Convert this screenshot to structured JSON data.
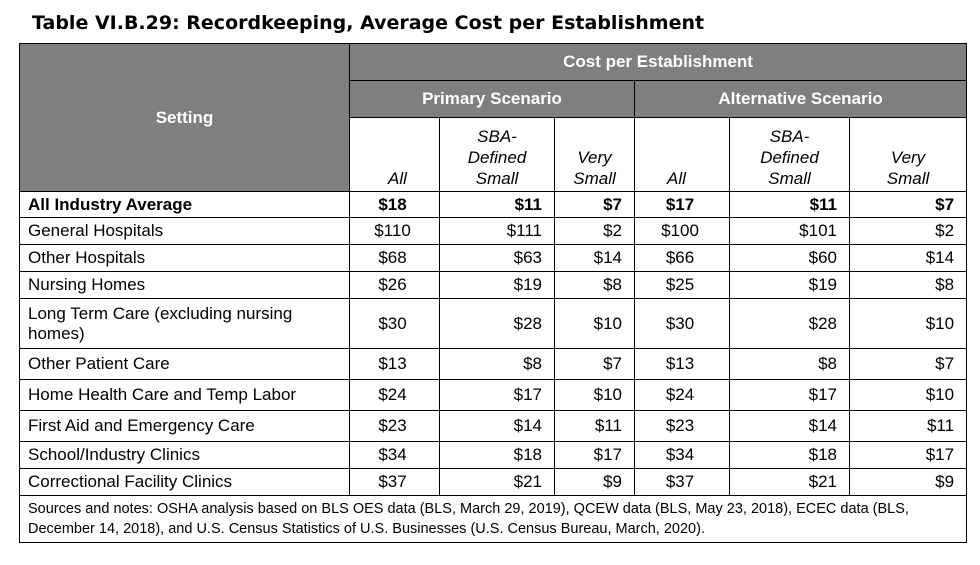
{
  "title": "Table VI.B.29: Recordkeeping, Average Cost per Establishment",
  "header": {
    "setting": "Setting",
    "cost_group": "Cost per Establishment",
    "primary": "Primary Scenario",
    "alternative": "Alternative Scenario",
    "cols": [
      "All",
      "SBA-\nDefined\nSmall",
      "Very\nSmall",
      "All",
      "SBA-\nDefined\nSmall",
      "Very\nSmall"
    ]
  },
  "rows": [
    {
      "label": "All Industry Average",
      "values": [
        "$18",
        "$11",
        "$7",
        "$17",
        "$11",
        "$7"
      ]
    },
    {
      "label": "General Hospitals",
      "values": [
        "$110",
        "$111",
        "$2",
        "$100",
        "$101",
        "$2"
      ]
    },
    {
      "label": "Other Hospitals",
      "values": [
        "$68",
        "$63",
        "$14",
        "$66",
        "$60",
        "$14"
      ]
    },
    {
      "label": "Nursing Homes",
      "values": [
        "$26",
        "$19",
        "$8",
        "$25",
        "$19",
        "$8"
      ]
    },
    {
      "label": "Long Term Care (excluding nursing homes)",
      "values": [
        "$30",
        "$28",
        "$10",
        "$30",
        "$28",
        "$10"
      ]
    },
    {
      "label": "Other Patient Care",
      "values": [
        "$13",
        "$8",
        "$7",
        "$13",
        "$8",
        "$7"
      ]
    },
    {
      "label": "Home Health Care and Temp Labor",
      "values": [
        "$24",
        "$17",
        "$10",
        "$24",
        "$17",
        "$10"
      ]
    },
    {
      "label": "First Aid and Emergency Care",
      "values": [
        "$23",
        "$14",
        "$11",
        "$23",
        "$14",
        "$11"
      ]
    },
    {
      "label": "School/Industry Clinics",
      "values": [
        "$34",
        "$18",
        "$17",
        "$34",
        "$18",
        "$17"
      ]
    },
    {
      "label": "Correctional Facility Clinics",
      "values": [
        "$37",
        "$21",
        "$9",
        "$37",
        "$21",
        "$9"
      ]
    }
  ],
  "notes": "Sources and notes: OSHA analysis based on BLS OES data (BLS, March 29, 2019), QCEW data (BLS, May 23, 2018), ECEC data (BLS, December 14, 2018), and U.S. Census Statistics of U.S. Businesses (U.S. Census Bureau, March, 2020)."
}
